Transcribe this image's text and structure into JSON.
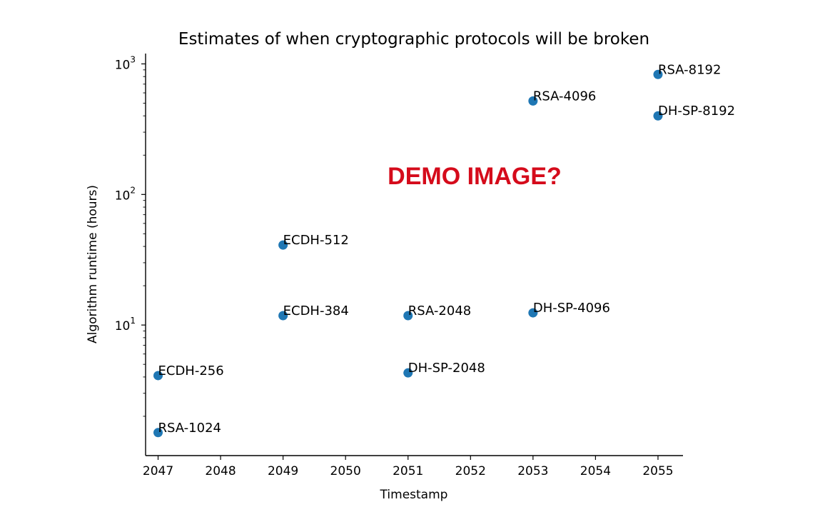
{
  "colors": {
    "point": "#1f77b4",
    "overlay": "#d50b1b"
  },
  "overlay_text": "DEMO IMAGE?",
  "chart_data": {
    "type": "scatter",
    "title": "Estimates of when cryptographic protocols will be broken",
    "xlabel": "Timestamp",
    "ylabel": "Algorithm runtime (hours)",
    "yscale": "log",
    "xlim": [
      2046.8,
      2055.4
    ],
    "ylim": [
      1.0,
      1200
    ],
    "x_ticks": [
      2047,
      2048,
      2049,
      2050,
      2051,
      2052,
      2053,
      2054,
      2055
    ],
    "y_ticks": [
      {
        "value": 10,
        "base": "10",
        "exp": "1"
      },
      {
        "value": 100,
        "base": "10",
        "exp": "2"
      },
      {
        "value": 1000,
        "base": "10",
        "exp": "3"
      }
    ],
    "y_minor_ticks": [
      2,
      3,
      4,
      5,
      6,
      7,
      8,
      9,
      20,
      30,
      40,
      50,
      60,
      70,
      80,
      90,
      200,
      300,
      400,
      500,
      600,
      700,
      800,
      900
    ],
    "grid": false,
    "points": [
      {
        "x": 2047,
        "y": 1.5,
        "label": "RSA-1024"
      },
      {
        "x": 2047,
        "y": 4.1,
        "label": "ECDH-256"
      },
      {
        "x": 2049,
        "y": 41,
        "label": "ECDH-512"
      },
      {
        "x": 2049,
        "y": 11.8,
        "label": "ECDH-384"
      },
      {
        "x": 2051,
        "y": 11.8,
        "label": "RSA-2048"
      },
      {
        "x": 2051,
        "y": 4.3,
        "label": "DH-SP-2048"
      },
      {
        "x": 2053,
        "y": 520,
        "label": "RSA-4096"
      },
      {
        "x": 2053,
        "y": 12.4,
        "label": "DH-SP-4096"
      },
      {
        "x": 2055,
        "y": 830,
        "label": "RSA-8192"
      },
      {
        "x": 2055,
        "y": 400,
        "label": "DH-SP-8192"
      }
    ]
  }
}
